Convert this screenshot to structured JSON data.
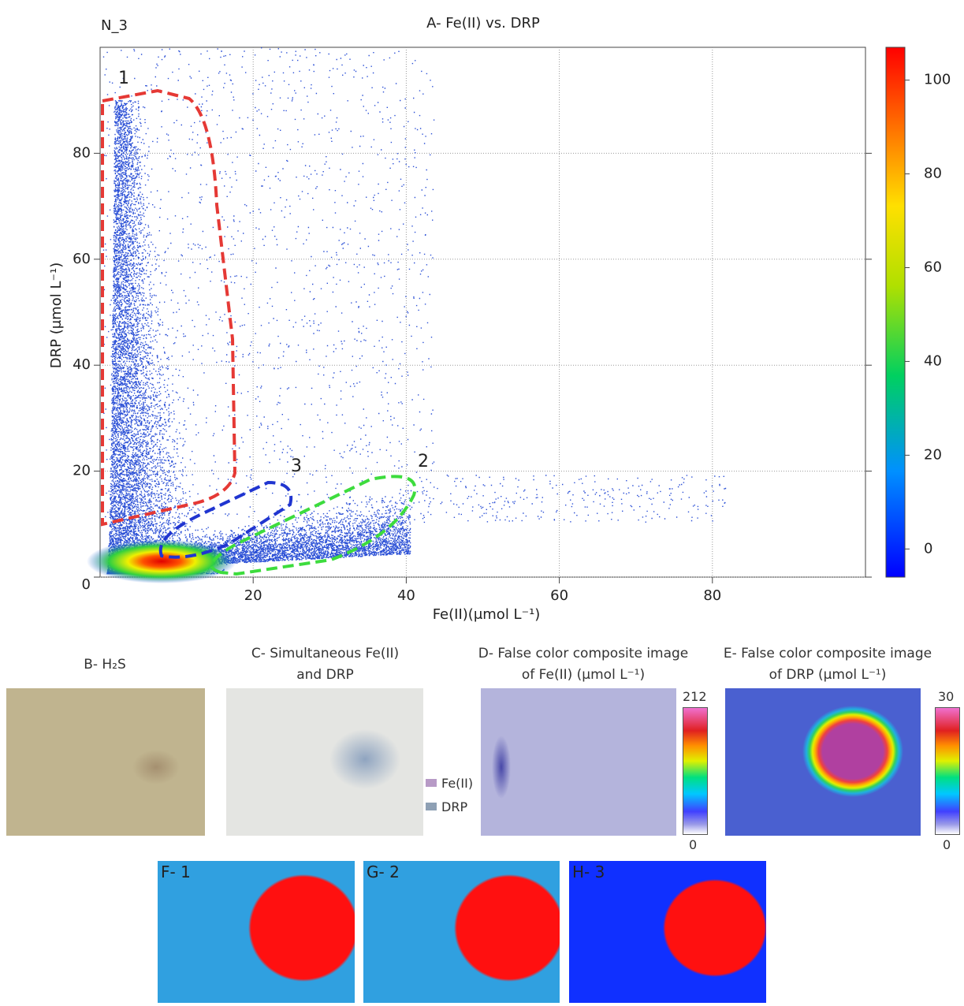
{
  "chart_data": {
    "type": "scatter",
    "title": "A- Fe(II) vs. DRP",
    "subtitle": "N_3",
    "xlabel": "Fe(II)(μmol L⁻¹)",
    "ylabel": "DRP (μmol L⁻¹)",
    "xlim": [
      0,
      100
    ],
    "ylim": [
      0,
      100
    ],
    "xticks": [
      20,
      40,
      60,
      80
    ],
    "yticks": [
      0,
      20,
      40,
      60,
      80
    ],
    "grid": true,
    "annotations": [
      "1",
      "2",
      "3"
    ],
    "colorbar": {
      "lim": [
        -6,
        107
      ],
      "ticks": [
        0,
        20,
        40,
        60,
        80,
        100
      ]
    }
  },
  "panels": {
    "b": {
      "title": "B- H₂S"
    },
    "c": {
      "title": [
        "C- Simultaneous Fe(II)",
        "and DRP"
      ],
      "legend": [
        "Fe(II)",
        "DRP"
      ]
    },
    "d": {
      "title": [
        "D- False color composite image",
        "of Fe(II) (μmol L⁻¹)"
      ],
      "scale": [
        "212",
        "0"
      ]
    },
    "e": {
      "title": [
        "E- False color composite image",
        "of DRP (μmol L⁻¹)"
      ],
      "scale": [
        "30",
        "0"
      ]
    },
    "f": {
      "title": "F- 1"
    },
    "g": {
      "title": "G- 2"
    },
    "h": {
      "title": "H- 3"
    }
  }
}
